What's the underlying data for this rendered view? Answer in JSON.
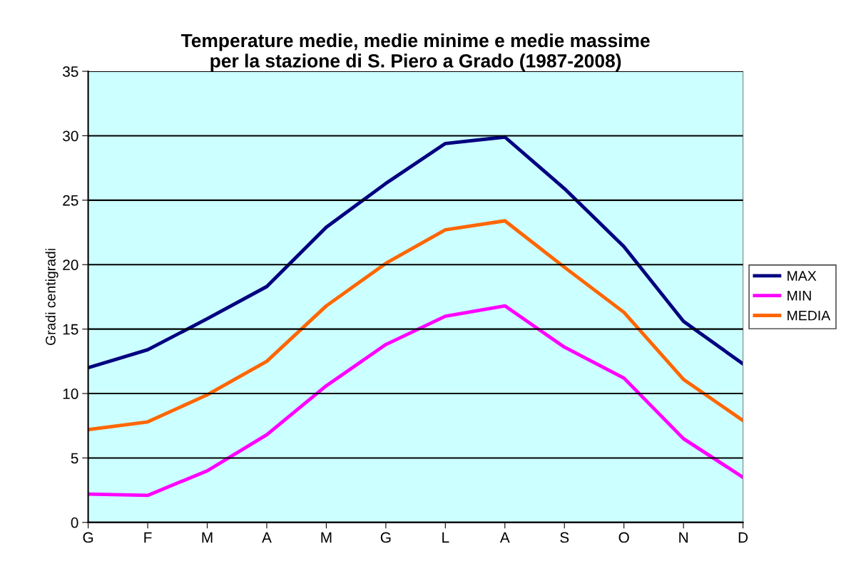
{
  "chart_data": {
    "type": "line",
    "title": "Temperature medie, medie minime e medie massime\nper la stazione di S. Piero a Grado (1987-2008)",
    "ylabel": "Gradi centigradi",
    "categories": [
      "G",
      "F",
      "M",
      "A",
      "M",
      "G",
      "L",
      "A",
      "S",
      "O",
      "N",
      "D"
    ],
    "series": [
      {
        "name": "MAX",
        "color": "#000080",
        "values": [
          12.0,
          13.4,
          15.8,
          18.3,
          22.9,
          26.3,
          29.4,
          29.9,
          25.9,
          21.4,
          15.6,
          12.3
        ]
      },
      {
        "name": "MIN",
        "color": "#ff00ff",
        "values": [
          2.2,
          2.1,
          4.0,
          6.8,
          10.6,
          13.8,
          16.0,
          16.8,
          13.6,
          11.2,
          6.5,
          3.5
        ]
      },
      {
        "name": "MEDIA",
        "color": "#ff6600",
        "values": [
          7.2,
          7.8,
          9.9,
          12.5,
          16.8,
          20.1,
          22.7,
          23.4,
          19.8,
          16.3,
          11.1,
          7.9
        ]
      }
    ],
    "ylim": [
      0,
      35
    ],
    "yticks": [
      0,
      5,
      10,
      15,
      20,
      25,
      30,
      35
    ],
    "grid": "y",
    "legend": "right",
    "marker": "none",
    "line_style": "solid"
  }
}
